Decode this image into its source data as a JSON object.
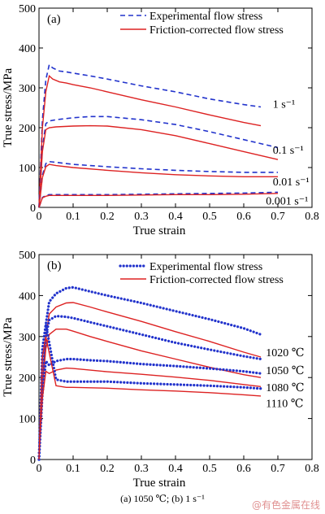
{
  "caption": "(a) 1050 ℃; (b) 1 s⁻¹",
  "watermark": "@有色金属在线",
  "colors": {
    "experimental": "#2233cc",
    "corrected": "#dd2222",
    "axis": "#000000"
  },
  "chart_data": [
    {
      "type": "line",
      "panel_label": "(a)",
      "xlabel": "True strain",
      "ylabel": "True stress/MPa",
      "xlim": [
        0,
        0.8
      ],
      "ylim": [
        0,
        500
      ],
      "xticks": [
        "0",
        "0.1",
        "0.2",
        "0.3",
        "0.4",
        "0.5",
        "0.6",
        "0.7",
        "0.8"
      ],
      "yticks": [
        "0",
        "100",
        "200",
        "300",
        "400",
        "500"
      ],
      "grid": false,
      "legend_position": "top-right",
      "legend": [
        "Experimental flow stress",
        "Friction-corrected flow stress"
      ],
      "series": [
        {
          "group": "1 s⁻¹",
          "kind": "experimental",
          "x": [
            0,
            0.01,
            0.02,
            0.03,
            0.04,
            0.06,
            0.08,
            0.1,
            0.15,
            0.2,
            0.3,
            0.4,
            0.5,
            0.6,
            0.65
          ],
          "y": [
            0,
            220,
            320,
            358,
            350,
            342,
            340,
            337,
            330,
            322,
            305,
            290,
            272,
            258,
            252
          ]
        },
        {
          "group": "1 s⁻¹",
          "kind": "corrected",
          "x": [
            0,
            0.01,
            0.02,
            0.03,
            0.04,
            0.06,
            0.08,
            0.1,
            0.15,
            0.2,
            0.3,
            0.4,
            0.5,
            0.6,
            0.65
          ],
          "y": [
            0,
            200,
            290,
            330,
            322,
            315,
            312,
            308,
            300,
            290,
            270,
            252,
            232,
            213,
            205
          ]
        },
        {
          "group": "0.1 s⁻¹",
          "kind": "experimental",
          "x": [
            0,
            0.01,
            0.02,
            0.03,
            0.05,
            0.1,
            0.15,
            0.2,
            0.3,
            0.4,
            0.5,
            0.6,
            0.7
          ],
          "y": [
            0,
            150,
            210,
            217,
            220,
            225,
            228,
            228,
            220,
            208,
            190,
            170,
            150
          ]
        },
        {
          "group": "0.1 s⁻¹",
          "kind": "corrected",
          "x": [
            0,
            0.01,
            0.02,
            0.03,
            0.05,
            0.1,
            0.15,
            0.2,
            0.3,
            0.4,
            0.5,
            0.6,
            0.7
          ],
          "y": [
            0,
            140,
            195,
            200,
            202,
            204,
            205,
            204,
            195,
            180,
            160,
            140,
            120
          ]
        },
        {
          "group": "0.01 s⁻¹",
          "kind": "experimental",
          "x": [
            0,
            0.01,
            0.02,
            0.03,
            0.05,
            0.1,
            0.2,
            0.3,
            0.4,
            0.5,
            0.6,
            0.7
          ],
          "y": [
            0,
            80,
            110,
            115,
            113,
            108,
            102,
            97,
            93,
            90,
            88,
            88
          ]
        },
        {
          "group": "0.01 s⁻¹",
          "kind": "corrected",
          "x": [
            0,
            0.01,
            0.02,
            0.03,
            0.05,
            0.1,
            0.2,
            0.3,
            0.4,
            0.5,
            0.6,
            0.7
          ],
          "y": [
            0,
            75,
            102,
            108,
            105,
            100,
            93,
            87,
            82,
            79,
            77,
            77
          ]
        },
        {
          "group": "0.001 s⁻¹",
          "kind": "experimental",
          "x": [
            0,
            0.01,
            0.02,
            0.03,
            0.1,
            0.2,
            0.3,
            0.4,
            0.5,
            0.6,
            0.7
          ],
          "y": [
            0,
            25,
            30,
            32,
            32,
            32,
            33,
            34,
            35,
            36,
            38
          ]
        },
        {
          "group": "0.001 s⁻¹",
          "kind": "corrected",
          "x": [
            0,
            0.01,
            0.02,
            0.03,
            0.1,
            0.2,
            0.3,
            0.4,
            0.5,
            0.6,
            0.7
          ],
          "y": [
            0,
            24,
            28,
            30,
            30,
            30,
            31,
            32,
            32,
            33,
            35
          ]
        }
      ],
      "annotations": [
        {
          "text": "1 s⁻¹",
          "x": 0.685,
          "y": 250
        },
        {
          "text": "0.1 s⁻¹",
          "x": 0.685,
          "y": 135
        },
        {
          "text": "0.01 s⁻¹",
          "x": 0.685,
          "y": 55
        },
        {
          "text": "0.001 s⁻¹",
          "x": 0.665,
          "y": 7
        }
      ]
    },
    {
      "type": "line",
      "panel_label": "(b)",
      "xlabel": "True strain",
      "ylabel": "True stress/MPa",
      "xlim": [
        0,
        0.8
      ],
      "ylim": [
        0,
        500
      ],
      "xticks": [
        "0",
        "0.1",
        "0.2",
        "0.3",
        "0.4",
        "0.5",
        "0.6",
        "0.7",
        "0.8"
      ],
      "yticks": [
        "0",
        "100",
        "200",
        "300",
        "400",
        "500"
      ],
      "grid": false,
      "legend_position": "top-right",
      "legend": [
        "Experimental flow stress",
        "Friction-corrected flow stress"
      ],
      "series": [
        {
          "group": "1020 ℃",
          "kind": "experimental",
          "x": [
            0,
            0.01,
            0.02,
            0.03,
            0.05,
            0.08,
            0.1,
            0.15,
            0.2,
            0.3,
            0.4,
            0.5,
            0.6,
            0.65
          ],
          "y": [
            0,
            200,
            330,
            385,
            405,
            418,
            420,
            410,
            400,
            382,
            362,
            342,
            320,
            305
          ]
        },
        {
          "group": "1020 ℃",
          "kind": "corrected",
          "x": [
            0,
            0.01,
            0.02,
            0.03,
            0.05,
            0.08,
            0.1,
            0.15,
            0.2,
            0.3,
            0.4,
            0.5,
            0.6,
            0.65
          ],
          "y": [
            0,
            180,
            300,
            355,
            372,
            382,
            383,
            372,
            360,
            337,
            312,
            288,
            262,
            250
          ]
        },
        {
          "group": "1050 ℃",
          "kind": "experimental",
          "x": [
            0,
            0.01,
            0.02,
            0.03,
            0.05,
            0.08,
            0.1,
            0.15,
            0.2,
            0.3,
            0.4,
            0.5,
            0.6,
            0.65
          ],
          "y": [
            0,
            190,
            300,
            340,
            350,
            348,
            345,
            335,
            325,
            305,
            285,
            268,
            252,
            245
          ]
        },
        {
          "group": "1050 ℃",
          "kind": "corrected",
          "x": [
            0,
            0.01,
            0.02,
            0.03,
            0.05,
            0.08,
            0.1,
            0.15,
            0.2,
            0.3,
            0.4,
            0.5,
            0.6,
            0.65
          ],
          "y": [
            0,
            180,
            270,
            305,
            318,
            318,
            313,
            300,
            288,
            265,
            245,
            225,
            207,
            200
          ]
        },
        {
          "group": "1080 ℃",
          "kind": "experimental",
          "x": [
            0,
            0.01,
            0.02,
            0.03,
            0.05,
            0.08,
            0.1,
            0.15,
            0.2,
            0.3,
            0.4,
            0.5,
            0.6,
            0.65
          ],
          "y": [
            0,
            160,
            240,
            230,
            240,
            245,
            245,
            242,
            240,
            233,
            228,
            222,
            215,
            210
          ]
        },
        {
          "group": "1080 ℃",
          "kind": "corrected",
          "x": [
            0,
            0.01,
            0.02,
            0.03,
            0.05,
            0.08,
            0.1,
            0.15,
            0.2,
            0.3,
            0.4,
            0.5,
            0.6,
            0.65
          ],
          "y": [
            0,
            150,
            215,
            210,
            218,
            223,
            222,
            218,
            214,
            208,
            201,
            193,
            183,
            178
          ]
        },
        {
          "group": "1110 ℃",
          "kind": "experimental",
          "x": [
            0,
            0.01,
            0.02,
            0.03,
            0.05,
            0.08,
            0.1,
            0.15,
            0.2,
            0.3,
            0.4,
            0.5,
            0.6,
            0.65
          ],
          "y": [
            0,
            270,
            330,
            285,
            195,
            190,
            190,
            190,
            190,
            186,
            183,
            180,
            176,
            173
          ]
        },
        {
          "group": "1110 ℃",
          "kind": "corrected",
          "x": [
            0,
            0.01,
            0.02,
            0.03,
            0.05,
            0.08,
            0.1,
            0.15,
            0.2,
            0.3,
            0.4,
            0.5,
            0.6,
            0.65
          ],
          "y": [
            0,
            250,
            300,
            260,
            180,
            176,
            176,
            175,
            174,
            170,
            167,
            163,
            158,
            155
          ]
        }
      ],
      "annotations": [
        {
          "text": "1020 ℃",
          "x": 0.665,
          "y": 252
        },
        {
          "text": "1050 ℃",
          "x": 0.665,
          "y": 208
        },
        {
          "text": "1080 ℃",
          "x": 0.665,
          "y": 167
        },
        {
          "text": "1110 ℃",
          "x": 0.665,
          "y": 128
        }
      ]
    }
  ]
}
